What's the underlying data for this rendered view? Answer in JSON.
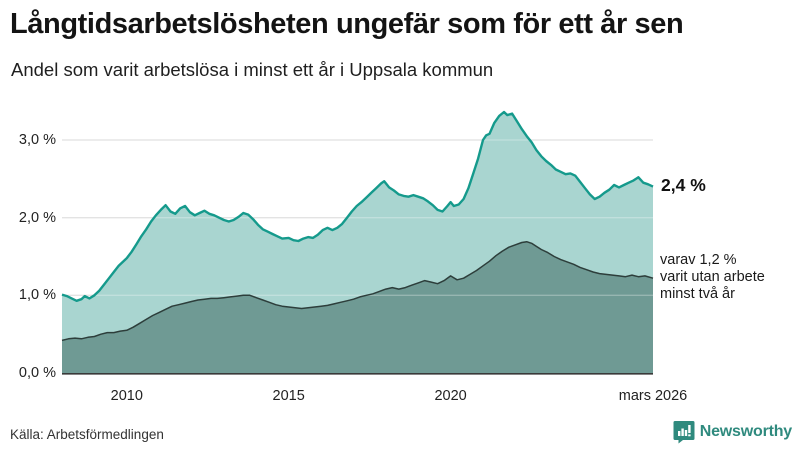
{
  "header": {
    "title": "Långtidsarbetslösheten ungefär som för ett år sen",
    "subtitle": "Andel som varit arbetslösa i minst ett år i Uppsala kommun"
  },
  "chart_data": {
    "type": "area",
    "title": "Andel som varit arbetslösa i minst ett år i Uppsala kommun",
    "x_unit": "decimal_year",
    "xlim": [
      2008.0,
      2026.25
    ],
    "ylim": [
      0.0,
      3.5
    ],
    "grid": "horizontal",
    "legend_position": "none",
    "y_ticks": [
      {
        "value": 0.0,
        "label": "0,0 %"
      },
      {
        "value": 1.0,
        "label": "1,0 %"
      },
      {
        "value": 2.0,
        "label": "2,0 %"
      },
      {
        "value": 3.0,
        "label": "3,0 %"
      }
    ],
    "x_ticks": [
      {
        "value": 2010.0,
        "label": "2010"
      },
      {
        "value": 2015.0,
        "label": "2015"
      },
      {
        "value": 2020.0,
        "label": "2020"
      },
      {
        "value": 2026.25,
        "label": "mars 2026"
      }
    ],
    "series": [
      {
        "name": "arbetslösa minst ett år",
        "line_color": "#159a8c",
        "fill_color": "#a9d5d0",
        "line_width": 2.4,
        "end_value_label": "2,4 %",
        "points": [
          [
            2008.0,
            1.01
          ],
          [
            2008.15,
            0.99
          ],
          [
            2008.3,
            0.96
          ],
          [
            2008.45,
            0.93
          ],
          [
            2008.6,
            0.95
          ],
          [
            2008.7,
            0.99
          ],
          [
            2008.85,
            0.96
          ],
          [
            2009.0,
            1.0
          ],
          [
            2009.15,
            1.06
          ],
          [
            2009.3,
            1.14
          ],
          [
            2009.45,
            1.22
          ],
          [
            2009.6,
            1.3
          ],
          [
            2009.75,
            1.38
          ],
          [
            2009.9,
            1.44
          ],
          [
            2010.0,
            1.48
          ],
          [
            2010.15,
            1.56
          ],
          [
            2010.3,
            1.66
          ],
          [
            2010.45,
            1.76
          ],
          [
            2010.6,
            1.85
          ],
          [
            2010.75,
            1.95
          ],
          [
            2010.9,
            2.03
          ],
          [
            2011.05,
            2.1
          ],
          [
            2011.2,
            2.16
          ],
          [
            2011.35,
            2.08
          ],
          [
            2011.5,
            2.05
          ],
          [
            2011.65,
            2.12
          ],
          [
            2011.8,
            2.15
          ],
          [
            2011.95,
            2.07
          ],
          [
            2012.1,
            2.03
          ],
          [
            2012.25,
            2.06
          ],
          [
            2012.4,
            2.09
          ],
          [
            2012.55,
            2.05
          ],
          [
            2012.7,
            2.03
          ],
          [
            2012.85,
            2.0
          ],
          [
            2013.0,
            1.97
          ],
          [
            2013.15,
            1.95
          ],
          [
            2013.3,
            1.97
          ],
          [
            2013.45,
            2.01
          ],
          [
            2013.6,
            2.06
          ],
          [
            2013.75,
            2.04
          ],
          [
            2013.9,
            1.98
          ],
          [
            2014.05,
            1.91
          ],
          [
            2014.2,
            1.85
          ],
          [
            2014.35,
            1.82
          ],
          [
            2014.5,
            1.79
          ],
          [
            2014.65,
            1.76
          ],
          [
            2014.8,
            1.73
          ],
          [
            2015.0,
            1.74
          ],
          [
            2015.15,
            1.71
          ],
          [
            2015.3,
            1.7
          ],
          [
            2015.45,
            1.73
          ],
          [
            2015.6,
            1.75
          ],
          [
            2015.75,
            1.74
          ],
          [
            2015.9,
            1.78
          ],
          [
            2016.05,
            1.84
          ],
          [
            2016.2,
            1.87
          ],
          [
            2016.35,
            1.84
          ],
          [
            2016.5,
            1.87
          ],
          [
            2016.65,
            1.92
          ],
          [
            2016.8,
            2.0
          ],
          [
            2016.95,
            2.08
          ],
          [
            2017.1,
            2.15
          ],
          [
            2017.25,
            2.2
          ],
          [
            2017.4,
            2.26
          ],
          [
            2017.55,
            2.32
          ],
          [
            2017.7,
            2.38
          ],
          [
            2017.85,
            2.44
          ],
          [
            2017.95,
            2.47
          ],
          [
            2018.1,
            2.39
          ],
          [
            2018.25,
            2.35
          ],
          [
            2018.4,
            2.3
          ],
          [
            2018.55,
            2.28
          ],
          [
            2018.7,
            2.27
          ],
          [
            2018.85,
            2.29
          ],
          [
            2019.0,
            2.27
          ],
          [
            2019.15,
            2.25
          ],
          [
            2019.3,
            2.21
          ],
          [
            2019.45,
            2.16
          ],
          [
            2019.6,
            2.1
          ],
          [
            2019.75,
            2.08
          ],
          [
            2019.9,
            2.15
          ],
          [
            2020.0,
            2.2
          ],
          [
            2020.1,
            2.15
          ],
          [
            2020.25,
            2.17
          ],
          [
            2020.4,
            2.24
          ],
          [
            2020.55,
            2.38
          ],
          [
            2020.7,
            2.57
          ],
          [
            2020.85,
            2.76
          ],
          [
            2021.0,
            3.0
          ],
          [
            2021.1,
            3.06
          ],
          [
            2021.2,
            3.08
          ],
          [
            2021.35,
            3.22
          ],
          [
            2021.5,
            3.31
          ],
          [
            2021.65,
            3.36
          ],
          [
            2021.75,
            3.32
          ],
          [
            2021.9,
            3.34
          ],
          [
            2022.05,
            3.24
          ],
          [
            2022.2,
            3.14
          ],
          [
            2022.35,
            3.05
          ],
          [
            2022.5,
            2.97
          ],
          [
            2022.65,
            2.87
          ],
          [
            2022.8,
            2.79
          ],
          [
            2022.95,
            2.73
          ],
          [
            2023.1,
            2.68
          ],
          [
            2023.25,
            2.62
          ],
          [
            2023.4,
            2.59
          ],
          [
            2023.55,
            2.56
          ],
          [
            2023.7,
            2.57
          ],
          [
            2023.85,
            2.54
          ],
          [
            2024.0,
            2.46
          ],
          [
            2024.15,
            2.38
          ],
          [
            2024.3,
            2.3
          ],
          [
            2024.45,
            2.24
          ],
          [
            2024.6,
            2.27
          ],
          [
            2024.75,
            2.32
          ],
          [
            2024.9,
            2.36
          ],
          [
            2025.05,
            2.42
          ],
          [
            2025.2,
            2.39
          ],
          [
            2025.35,
            2.42
          ],
          [
            2025.5,
            2.45
          ],
          [
            2025.65,
            2.48
          ],
          [
            2025.8,
            2.52
          ],
          [
            2025.95,
            2.45
          ],
          [
            2026.1,
            2.43
          ],
          [
            2026.25,
            2.4
          ]
        ]
      },
      {
        "name": "varav arbetslösa minst två år",
        "line_color": "#2d3e3b",
        "fill_color": "#6f9a94",
        "line_width": 1.5,
        "end_value_label": "1,2 %",
        "points": [
          [
            2008.0,
            0.42
          ],
          [
            2008.2,
            0.44
          ],
          [
            2008.4,
            0.45
          ],
          [
            2008.6,
            0.44
          ],
          [
            2008.8,
            0.46
          ],
          [
            2009.0,
            0.47
          ],
          [
            2009.2,
            0.5
          ],
          [
            2009.4,
            0.52
          ],
          [
            2009.6,
            0.52
          ],
          [
            2009.8,
            0.54
          ],
          [
            2010.0,
            0.55
          ],
          [
            2010.2,
            0.59
          ],
          [
            2010.4,
            0.64
          ],
          [
            2010.6,
            0.69
          ],
          [
            2010.8,
            0.74
          ],
          [
            2011.0,
            0.78
          ],
          [
            2011.2,
            0.82
          ],
          [
            2011.4,
            0.86
          ],
          [
            2011.6,
            0.88
          ],
          [
            2011.8,
            0.9
          ],
          [
            2012.0,
            0.92
          ],
          [
            2012.2,
            0.94
          ],
          [
            2012.4,
            0.95
          ],
          [
            2012.6,
            0.96
          ],
          [
            2012.8,
            0.96
          ],
          [
            2013.0,
            0.97
          ],
          [
            2013.2,
            0.98
          ],
          [
            2013.4,
            0.99
          ],
          [
            2013.6,
            1.0
          ],
          [
            2013.8,
            1.0
          ],
          [
            2014.0,
            0.97
          ],
          [
            2014.2,
            0.94
          ],
          [
            2014.4,
            0.91
          ],
          [
            2014.6,
            0.88
          ],
          [
            2014.8,
            0.86
          ],
          [
            2015.0,
            0.85
          ],
          [
            2015.2,
            0.84
          ],
          [
            2015.4,
            0.83
          ],
          [
            2015.6,
            0.84
          ],
          [
            2015.8,
            0.85
          ],
          [
            2016.0,
            0.86
          ],
          [
            2016.2,
            0.87
          ],
          [
            2016.4,
            0.89
          ],
          [
            2016.6,
            0.91
          ],
          [
            2016.8,
            0.93
          ],
          [
            2017.0,
            0.95
          ],
          [
            2017.2,
            0.98
          ],
          [
            2017.4,
            1.0
          ],
          [
            2017.6,
            1.02
          ],
          [
            2017.8,
            1.05
          ],
          [
            2018.0,
            1.08
          ],
          [
            2018.2,
            1.1
          ],
          [
            2018.4,
            1.08
          ],
          [
            2018.6,
            1.1
          ],
          [
            2018.8,
            1.13
          ],
          [
            2019.0,
            1.16
          ],
          [
            2019.2,
            1.19
          ],
          [
            2019.4,
            1.17
          ],
          [
            2019.6,
            1.15
          ],
          [
            2019.8,
            1.19
          ],
          [
            2020.0,
            1.25
          ],
          [
            2020.2,
            1.2
          ],
          [
            2020.4,
            1.22
          ],
          [
            2020.6,
            1.27
          ],
          [
            2020.8,
            1.32
          ],
          [
            2021.0,
            1.38
          ],
          [
            2021.2,
            1.44
          ],
          [
            2021.4,
            1.51
          ],
          [
            2021.6,
            1.57
          ],
          [
            2021.8,
            1.62
          ],
          [
            2022.0,
            1.65
          ],
          [
            2022.2,
            1.68
          ],
          [
            2022.35,
            1.69
          ],
          [
            2022.5,
            1.67
          ],
          [
            2022.65,
            1.63
          ],
          [
            2022.8,
            1.59
          ],
          [
            2023.0,
            1.55
          ],
          [
            2023.2,
            1.5
          ],
          [
            2023.4,
            1.46
          ],
          [
            2023.6,
            1.43
          ],
          [
            2023.8,
            1.4
          ],
          [
            2024.0,
            1.36
          ],
          [
            2024.2,
            1.33
          ],
          [
            2024.4,
            1.3
          ],
          [
            2024.6,
            1.28
          ],
          [
            2024.8,
            1.27
          ],
          [
            2025.0,
            1.26
          ],
          [
            2025.2,
            1.25
          ],
          [
            2025.4,
            1.24
          ],
          [
            2025.6,
            1.26
          ],
          [
            2025.8,
            1.24
          ],
          [
            2026.0,
            1.25
          ],
          [
            2026.25,
            1.22
          ]
        ]
      }
    ],
    "end_label": "2,4 %",
    "annotation_lines": [
      "varav 1,2 %",
      "varit utan arbete",
      "minst två år"
    ]
  },
  "footer": {
    "source": "Källa: Arbetsförmedlingen",
    "brand": "Newsworthy"
  },
  "colors": {
    "accent_teal": "#159a8c",
    "light_area": "#a9d5d0",
    "dark_area": "#6f9a94",
    "dark_line": "#2d3e3b",
    "gridline": "#d9d9d9",
    "axis": "#3a3a3a",
    "brand_teal": "#2f8a7e",
    "text": "#1a1a1a"
  }
}
